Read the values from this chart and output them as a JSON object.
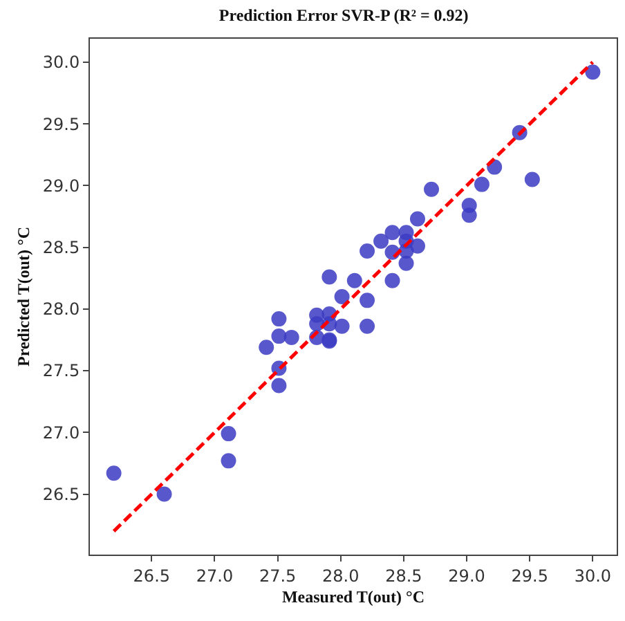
{
  "chart_data": {
    "type": "scatter",
    "title": "Prediction Error SVR-P (R² = 0.92)",
    "xlabel": "Measured T(out) °C",
    "ylabel": "Predicted T(out) °C",
    "xlim": [
      26.01,
      30.19
    ],
    "ylim": [
      26.01,
      30.19
    ],
    "xticks": [
      26.5,
      {
        "value": 27,
        "label": "27.0"
      },
      27.5,
      {
        "value": 28,
        "label": "28.0"
      },
      28.5,
      {
        "value": 29,
        "label": "29.0"
      },
      29.5,
      {
        "value": 30,
        "label": "30.0"
      }
    ],
    "yticks": [
      26.5,
      {
        "value": 27,
        "label": "27.0"
      },
      27.5,
      {
        "value": 28,
        "label": "28.0"
      },
      28.5,
      {
        "value": 29,
        "label": "29.0"
      },
      29.5,
      {
        "value": 30,
        "label": "30.0"
      }
    ],
    "legend": false,
    "series": [
      {
        "color": "#3c3cc4",
        "marker": "circle",
        "x": [
          30.0,
          29.42,
          29.22,
          29.52,
          29.12,
          28.72,
          29.02,
          29.02,
          28.61,
          28.41,
          28.52,
          28.52,
          28.32,
          28.61,
          28.21,
          28.41,
          28.52,
          28.52,
          27.91,
          28.11,
          28.41,
          28.01,
          28.21,
          27.51,
          27.81,
          27.91,
          27.81,
          27.91,
          28.01,
          28.21,
          27.51,
          27.61,
          27.81,
          27.91,
          27.91,
          27.41,
          27.51,
          27.51,
          27.11,
          27.11,
          26.2,
          26.6
        ],
        "values": [
          29.92,
          29.43,
          29.15,
          29.05,
          29.01,
          28.97,
          28.84,
          28.76,
          28.73,
          28.62,
          28.62,
          28.55,
          28.55,
          28.51,
          28.47,
          28.46,
          28.47,
          28.37,
          28.26,
          28.23,
          28.23,
          28.1,
          28.07,
          27.92,
          27.95,
          27.96,
          27.88,
          27.88,
          27.86,
          27.86,
          27.78,
          27.77,
          27.77,
          27.75,
          27.74,
          27.69,
          27.52,
          27.38,
          26.99,
          26.77,
          26.67,
          26.5
        ]
      },
      {
        "type": "line",
        "color": "#ff0000",
        "line_style": "dashed",
        "marker": "none",
        "x": [
          26.2,
          30.0
        ],
        "values": [
          26.2,
          30.0
        ]
      }
    ]
  }
}
